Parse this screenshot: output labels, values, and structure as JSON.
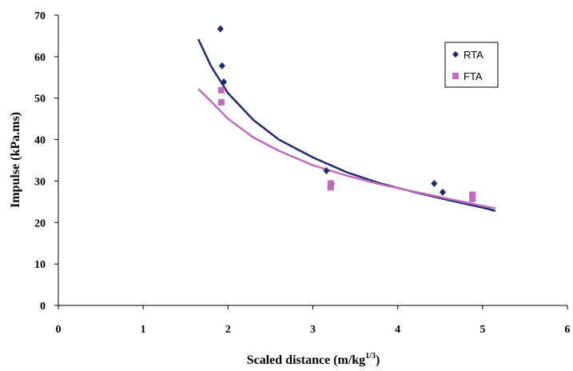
{
  "chart_data": {
    "type": "scatter",
    "xlabel": "Scaled distance (m/kg",
    "xlabel_sup": "1/3",
    "xlabel_close": ")",
    "ylabel": "Impulse (kPa.ms)",
    "xlim": [
      0,
      6
    ],
    "ylim": [
      0,
      70
    ],
    "x_ticks": [
      "0",
      "1",
      "2",
      "3",
      "4",
      "5",
      "6"
    ],
    "y_ticks": [
      "0",
      "10",
      "20",
      "30",
      "40",
      "50",
      "60",
      "70"
    ],
    "grid": false,
    "legend_position": "top-right",
    "series": [
      {
        "name": "RTA",
        "color": "#1f2a6b",
        "marker": "diamond",
        "points": [
          {
            "x": 1.91,
            "y": 66.7
          },
          {
            "x": 1.93,
            "y": 57.8
          },
          {
            "x": 1.95,
            "y": 53.9
          },
          {
            "x": 3.16,
            "y": 32.5
          },
          {
            "x": 3.22,
            "y": 29.4
          },
          {
            "x": 4.43,
            "y": 29.4
          },
          {
            "x": 4.53,
            "y": 27.3
          },
          {
            "x": 4.88,
            "y": 25.7
          }
        ],
        "trendline": {
          "x": [
            1.65,
            1.8,
            2.0,
            2.3,
            2.6,
            3.0,
            3.4,
            3.8,
            4.2,
            4.6,
            5.0,
            5.15
          ],
          "y": [
            64.2,
            57.7,
            51.2,
            44.7,
            40.0,
            35.7,
            32.1,
            29.4,
            27.3,
            25.4,
            23.6,
            22.8
          ]
        }
      },
      {
        "name": "FTA",
        "color": "#c06bbe",
        "marker": "square",
        "points": [
          {
            "x": 1.92,
            "y": 51.9
          },
          {
            "x": 1.92,
            "y": 49.0
          },
          {
            "x": 3.21,
            "y": 29.4
          },
          {
            "x": 3.21,
            "y": 28.5
          },
          {
            "x": 4.88,
            "y": 26.7
          },
          {
            "x": 4.88,
            "y": 25.7
          }
        ],
        "trendline": {
          "x": [
            1.65,
            1.8,
            2.0,
            2.3,
            2.6,
            3.0,
            3.4,
            3.8,
            4.2,
            4.6,
            5.0,
            5.15
          ],
          "y": [
            52.2,
            49.2,
            45.0,
            40.5,
            37.3,
            33.8,
            31.3,
            29.2,
            27.4,
            25.7,
            24.0,
            23.4
          ]
        }
      }
    ]
  }
}
